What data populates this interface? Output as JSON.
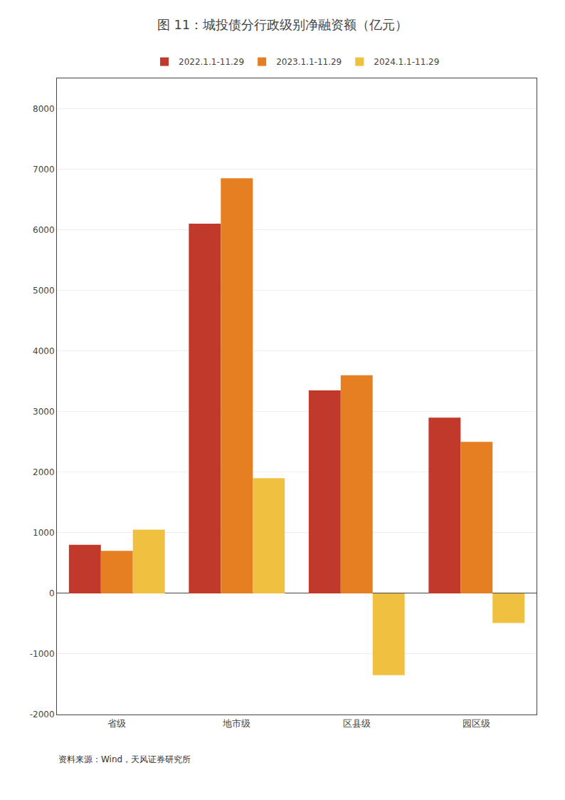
{
  "chart_data": {
    "type": "bar",
    "title": "图 11：城投债分行政级别净融资额（亿元）",
    "categories": [
      "省级",
      "地市级",
      "区县级",
      "园区级"
    ],
    "series": [
      {
        "name": "2022.1.1-11.29",
        "color": "#c0392b",
        "values": [
          800,
          6100,
          3350,
          2900
        ]
      },
      {
        "name": "2023.1.1-11.29",
        "color": "#e67e22",
        "values": [
          700,
          6850,
          3600,
          2500
        ]
      },
      {
        "name": "2024.1.1-11.29",
        "color": "#f0c040",
        "values": [
          1050,
          1900,
          -1350,
          -490
        ]
      }
    ],
    "ylim": [
      -2000,
      8500
    ],
    "yticks": [
      -2000,
      -1000,
      0,
      1000,
      2000,
      3000,
      4000,
      5000,
      6000,
      7000,
      8000
    ],
    "grid": true,
    "legend": "upper center",
    "annotations": [
      "资料来源：Wind，天风证券研究所"
    ]
  }
}
